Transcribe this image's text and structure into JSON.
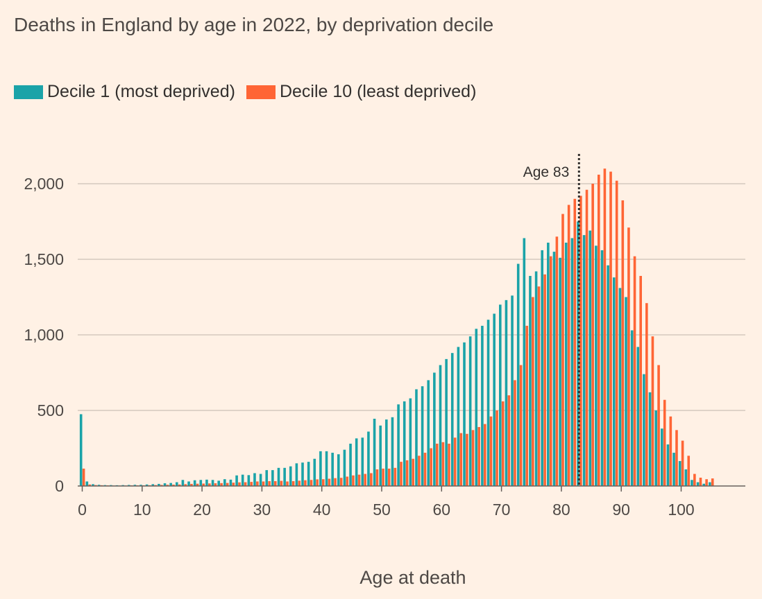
{
  "chart_data": {
    "type": "bar",
    "title": "Deaths in England by age in 2022, by deprivation decile",
    "xlabel": "Age at death",
    "ylabel": "",
    "ylim": [
      0,
      2200
    ],
    "xlim": [
      0,
      110
    ],
    "yticks": [
      0,
      500,
      1000,
      1500,
      2000
    ],
    "ytick_labels": [
      "0",
      "500",
      "1,000",
      "1,500",
      "2,000"
    ],
    "xticks": [
      0,
      10,
      20,
      30,
      40,
      50,
      60,
      70,
      80,
      90,
      100
    ],
    "xtick_labels": [
      "0",
      "10",
      "20",
      "30",
      "40",
      "50",
      "60",
      "70",
      "80",
      "90",
      "100"
    ],
    "grid": "horizontal",
    "legend_position": "top-left",
    "annotation": {
      "label": "Age 83",
      "x": 83
    },
    "colors": {
      "decile1": "#1AA3A8",
      "decile10": "#FF6535",
      "background": "#FFF1E5"
    },
    "x": [
      0,
      1,
      2,
      3,
      4,
      5,
      6,
      7,
      8,
      9,
      10,
      11,
      12,
      13,
      14,
      15,
      16,
      17,
      18,
      19,
      20,
      21,
      22,
      23,
      24,
      25,
      26,
      27,
      28,
      29,
      30,
      31,
      32,
      33,
      34,
      35,
      36,
      37,
      38,
      39,
      40,
      41,
      42,
      43,
      44,
      45,
      46,
      47,
      48,
      49,
      50,
      51,
      52,
      53,
      54,
      55,
      56,
      57,
      58,
      59,
      60,
      61,
      62,
      63,
      64,
      65,
      66,
      67,
      68,
      69,
      70,
      71,
      72,
      73,
      74,
      75,
      76,
      77,
      78,
      79,
      80,
      81,
      82,
      83,
      84,
      85,
      86,
      87,
      88,
      89,
      90,
      91,
      92,
      93,
      94,
      95,
      96,
      97,
      98,
      99,
      100,
      101,
      102,
      103,
      104,
      105
    ],
    "series": [
      {
        "name": "Decile 1 (most deprived)",
        "values": [
          475,
          30,
          12,
          8,
          6,
          6,
          5,
          6,
          7,
          8,
          8,
          10,
          12,
          14,
          18,
          20,
          25,
          40,
          30,
          38,
          40,
          42,
          40,
          35,
          45,
          42,
          70,
          75,
          72,
          85,
          80,
          105,
          105,
          120,
          120,
          130,
          150,
          155,
          160,
          180,
          230,
          230,
          220,
          210,
          240,
          280,
          315,
          320,
          360,
          445,
          400,
          440,
          455,
          540,
          560,
          580,
          640,
          660,
          700,
          750,
          800,
          840,
          880,
          920,
          950,
          990,
          1040,
          1060,
          1100,
          1140,
          1200,
          1230,
          1260,
          1470,
          1640,
          1390,
          1420,
          1560,
          1610,
          1550,
          1510,
          1610,
          1640,
          1750,
          1660,
          1690,
          1590,
          1560,
          1460,
          1380,
          1310,
          1250,
          1030,
          920,
          740,
          620,
          500,
          380,
          275,
          220,
          165,
          110,
          40,
          25,
          15,
          25
        ]
      },
      {
        "name": "Decile 10 (least deprived)",
        "values": [
          115,
          10,
          6,
          5,
          4,
          3,
          3,
          3,
          4,
          4,
          4,
          5,
          6,
          7,
          8,
          9,
          10,
          12,
          14,
          15,
          16,
          17,
          18,
          19,
          20,
          22,
          24,
          25,
          27,
          30,
          30,
          32,
          32,
          34,
          30,
          32,
          35,
          38,
          40,
          44,
          45,
          48,
          52,
          54,
          62,
          70,
          75,
          80,
          85,
          110,
          115,
          115,
          120,
          160,
          170,
          180,
          200,
          220,
          250,
          280,
          290,
          280,
          320,
          350,
          345,
          370,
          390,
          410,
          460,
          500,
          560,
          600,
          700,
          800,
          1060,
          1250,
          1320,
          1400,
          1520,
          1650,
          1800,
          1860,
          1900,
          1920,
          1960,
          2000,
          2060,
          2100,
          2080,
          2020,
          1890,
          1710,
          1520,
          1390,
          1210,
          990,
          800,
          570,
          460,
          370,
          300,
          200,
          80,
          55,
          45,
          50
        ]
      }
    ]
  },
  "legend": {
    "items": [
      {
        "label": "Decile 1 (most deprived)"
      },
      {
        "label": "Decile 10 (least deprived)"
      }
    ]
  }
}
